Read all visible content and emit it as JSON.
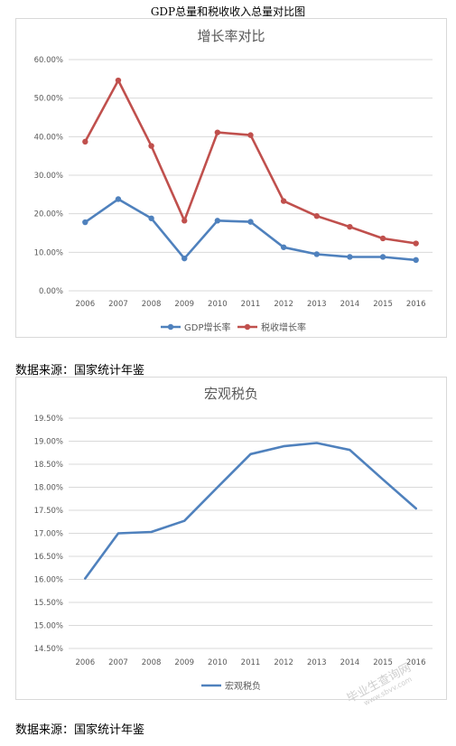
{
  "page": {
    "heading": "GDP总量和税收收入总量对比图",
    "sources": [
      "数据来源：国家统计年鉴",
      "数据来源：国家统计年鉴"
    ],
    "watermark": "毕业生查询网",
    "watermark_url": "www.sbvv.com"
  },
  "colors": {
    "blue": "#4f81bd",
    "red": "#c0504d",
    "grid": "#d9d9d9",
    "text": "#595959"
  },
  "chart_data": [
    {
      "type": "line",
      "title": "增长率对比",
      "xlabel": "",
      "ylabel": "",
      "categories": [
        "2006",
        "2007",
        "2008",
        "2009",
        "2010",
        "2011",
        "2012",
        "2013",
        "2014",
        "2015",
        "2016"
      ],
      "yticks": [
        "0.00%",
        "10.00%",
        "20.00%",
        "30.00%",
        "40.00%",
        "50.00%",
        "60.00%"
      ],
      "ylim": [
        0,
        60
      ],
      "grid": true,
      "markers": true,
      "legend_position": "bottom",
      "series": [
        {
          "name": "GDP增长率",
          "color": "#4f81bd",
          "values": [
            17.8,
            23.8,
            18.8,
            8.4,
            18.2,
            17.9,
            11.3,
            9.5,
            8.8,
            8.8,
            8.0
          ]
        },
        {
          "name": "税收增长率",
          "color": "#c0504d",
          "values": [
            38.7,
            54.6,
            37.6,
            18.2,
            41.1,
            40.4,
            23.3,
            19.4,
            16.6,
            13.6,
            12.3
          ]
        }
      ]
    },
    {
      "type": "line",
      "title": "宏观税负",
      "xlabel": "",
      "ylabel": "",
      "categories": [
        "2006",
        "2007",
        "2008",
        "2009",
        "2010",
        "2011",
        "2012",
        "2013",
        "2014",
        "2015",
        "2016"
      ],
      "yticks": [
        "14.50%",
        "15.00%",
        "15.50%",
        "16.00%",
        "16.50%",
        "17.00%",
        "17.50%",
        "18.00%",
        "18.50%",
        "19.00%",
        "19.50%"
      ],
      "ylim": [
        14.5,
        19.5
      ],
      "grid": true,
      "markers": false,
      "legend_position": "bottom",
      "series": [
        {
          "name": "宏观税负",
          "color": "#4f81bd",
          "values": [
            16.02,
            17.0,
            17.03,
            17.27,
            18.0,
            18.72,
            18.89,
            18.96,
            18.81,
            18.17,
            17.54
          ]
        }
      ]
    }
  ]
}
